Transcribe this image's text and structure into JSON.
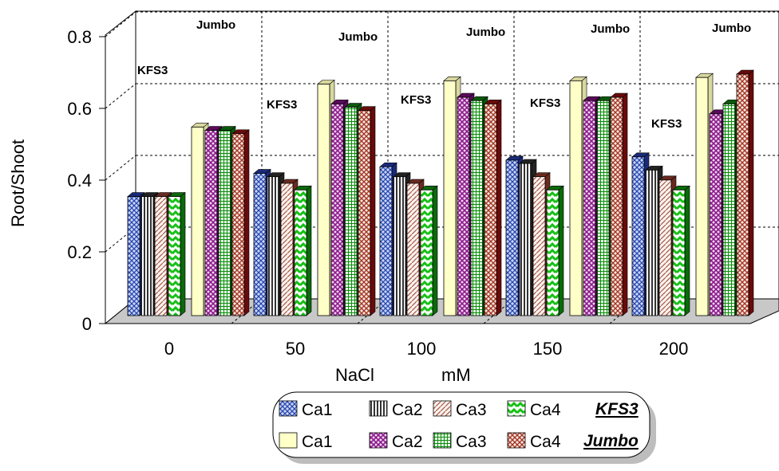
{
  "chart_data": {
    "type": "bar",
    "ylabel": "Root/Shoot",
    "xlabel_left": "NaCl",
    "xlabel_right": "mM",
    "categories": [
      "0",
      "50",
      "100",
      "150",
      "200"
    ],
    "ylim": [
      0,
      0.8
    ],
    "yticks": [
      "0",
      "0.2",
      "0.4",
      "0.6",
      "0.8"
    ],
    "grid": true,
    "legend_position": "bottom",
    "group_labels": {
      "kfs3": "KFS3",
      "jumbo": "Jumbo"
    },
    "series": [
      {
        "name": "Ca1",
        "group": "KFS3",
        "color": "#5b7bd5",
        "pattern": "cross",
        "values": [
          0.36,
          0.43,
          0.45,
          0.47,
          0.48
        ]
      },
      {
        "name": "Ca2",
        "group": "KFS3",
        "color": "#b8b8b8",
        "pattern": "vlines",
        "values": [
          0.36,
          0.42,
          0.42,
          0.46,
          0.44
        ]
      },
      {
        "name": "Ca3",
        "group": "KFS3",
        "color": "#e8c8c0",
        "pattern": "diag",
        "values": [
          0.36,
          0.4,
          0.4,
          0.42,
          0.41
        ]
      },
      {
        "name": "Ca4",
        "group": "KFS3",
        "color": "#22dd22",
        "pattern": "zigzag",
        "values": [
          0.36,
          0.38,
          0.38,
          0.38,
          0.38
        ]
      },
      {
        "name": "Ca1",
        "group": "Jumbo",
        "color": "#ffffc8",
        "pattern": "solid",
        "values": [
          0.57,
          0.7,
          0.71,
          0.71,
          0.72
        ]
      },
      {
        "name": "Ca2",
        "group": "Jumbo",
        "color": "#cc44cc",
        "pattern": "diamond",
        "values": [
          0.56,
          0.64,
          0.66,
          0.65,
          0.61
        ]
      },
      {
        "name": "Ca3",
        "group": "Jumbo",
        "color": "#33cc33",
        "pattern": "grid",
        "values": [
          0.56,
          0.63,
          0.65,
          0.65,
          0.64
        ]
      },
      {
        "name": "Ca4",
        "group": "Jumbo",
        "color": "#d06040",
        "pattern": "diamond",
        "values": [
          0.55,
          0.62,
          0.64,
          0.66,
          0.73
        ]
      }
    ]
  }
}
